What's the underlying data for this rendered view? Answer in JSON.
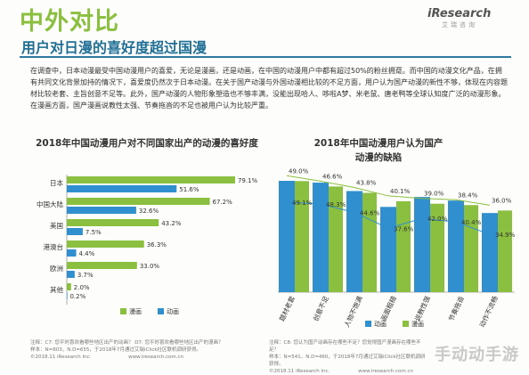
{
  "header": {
    "title": "中外对比",
    "subtitle": "用户对日漫的喜好度超过国漫",
    "logo_text": "iResearch",
    "logo_cn": "艾瑞咨询"
  },
  "body_text": "在调查中，日本动漫最受中国动漫用户的喜爱，无论是漫画，还是动画，在中国的动漫用户中都有超过50%的粉丝拥趸。而中国的动漫文化产品，在拥有共同文化背景加持的情况下，喜爱度仍然次于日本动漫。在关于国产动漫与外国动漫相比较的不足方面，用户认为国产动漫的新性不够，体现在内容题材比较老套、主旨创意不足等。此外，国产动漫的人物形象塑造也不够丰满，没能出现哈人、哆啦A梦、米老鼠、唐老鸭等全球认知度广泛的动漫形象。在漫画方面，国产漫画说教性太强、节奏拖沓的不足也被用户认为比较严重。",
  "colors": {
    "manga": "#8bbf3f",
    "anime": "#2f8fcf"
  },
  "chart_data": [
    {
      "type": "bar",
      "orientation": "horizontal",
      "title": "2018年中国动漫用户对不同国家出产的动漫的喜好度",
      "categories": [
        "日本",
        "中国大陆",
        "美国",
        "港澳台",
        "欧洲",
        "其他"
      ],
      "series": [
        {
          "name": "漫画",
          "values": [
            79.1,
            67.2,
            43.2,
            36.3,
            33.0,
            2.0
          ]
        },
        {
          "name": "动画",
          "values": [
            51.6,
            32.6,
            7.5,
            4.4,
            3.7,
            0.2
          ]
        }
      ],
      "value_labels": {
        "漫画": [
          "79.1%",
          "67.2%",
          "43.2%",
          "36.3%",
          "33.0%",
          "2.0%"
        ],
        "动画": [
          "51.6%",
          "32.6%",
          "7.5%",
          "4.4%",
          "3.7%",
          "0.2%"
        ]
      },
      "xlim": [
        0,
        90
      ],
      "legend": "bottom"
    },
    {
      "type": "bar",
      "orientation": "vertical",
      "title": "2018年中国动漫用户认为国产动漫的缺陷",
      "categories": [
        "题材老套",
        "创意不足",
        "人物不饱满",
        "画面粗糙",
        "说教性强",
        "节奏拖沓",
        "动作不流畅"
      ],
      "series": [
        {
          "name": "动画",
          "values": [
            49.1,
            48.3,
            44.6,
            37.6,
            42.0,
            40.4,
            34.9
          ]
        },
        {
          "name": "漫画",
          "values": [
            49.0,
            46.6,
            43.8,
            40.1,
            39.0,
            38.4,
            36.0
          ]
        }
      ],
      "value_labels": {
        "动画": [
          "49.1%",
          "48.3%",
          "44.6%",
          "37.6%",
          "42.0%",
          "40.4%",
          "34.9%"
        ],
        "漫画": [
          "49.0%",
          "46.6%",
          "43.8%",
          "40.1%",
          "39.0%",
          "38.4%",
          "36.0%"
        ]
      },
      "ylim": [
        0,
        55
      ],
      "legend": "bottom"
    }
  ],
  "notes": {
    "left_1": "注释：C7: 您平时喜欢看哪些地区出产的动画？ D7: 您平时喜欢看哪些地区出产的漫画？",
    "left_2": "样本：N=803，N.D=655，于2018年7月通过艾瑞iClick社区联机调研获得。",
    "left_3": "©2018.11 iResearch Inc.",
    "left_4": "www.iresearch.com.cn",
    "right_1": "注释：C8: 您认为国产动画存在哪些不足？您觉得国产漫画存在哪些不足？",
    "right_2": "样本：N=541，N.D=460，于2018年7月通过艾瑞iClick社区联机调研获得。",
    "right_3": "©2018.11 iResearch Inc.",
    "right_4": "www.iresearch.com.cn"
  },
  "watermark": "手动动手游"
}
